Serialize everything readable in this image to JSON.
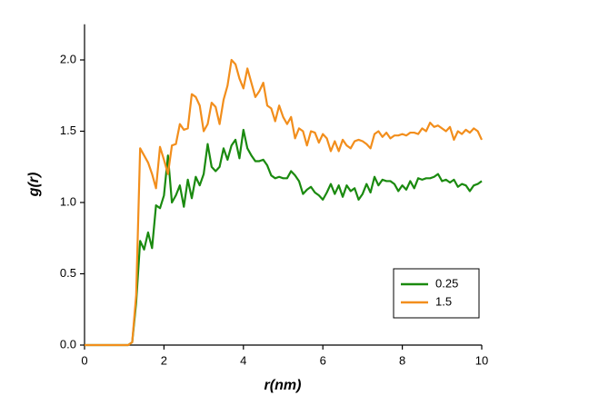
{
  "chart_data": {
    "type": "line",
    "x_label": "r(nm)",
    "y_label": "g(r)",
    "x": [
      0,
      0.1,
      0.2,
      0.3,
      0.4,
      0.5,
      0.6,
      0.7,
      0.8,
      0.9,
      1.0,
      1.1,
      1.2,
      1.3,
      1.4,
      1.5,
      1.6,
      1.7,
      1.8,
      1.9,
      2.0,
      2.1,
      2.2,
      2.3,
      2.4,
      2.5,
      2.6,
      2.7,
      2.8,
      2.9,
      3.0,
      3.1,
      3.2,
      3.3,
      3.4,
      3.5,
      3.6,
      3.7,
      3.8,
      3.9,
      4.0,
      4.1,
      4.2,
      4.3,
      4.4,
      4.5,
      4.6,
      4.7,
      4.8,
      4.9,
      5.0,
      5.1,
      5.2,
      5.3,
      5.4,
      5.5,
      5.6,
      5.7,
      5.8,
      5.9,
      6.0,
      6.1,
      6.2,
      6.3,
      6.4,
      6.5,
      6.6,
      6.7,
      6.8,
      6.9,
      7.0,
      7.1,
      7.2,
      7.3,
      7.4,
      7.5,
      7.6,
      7.7,
      7.8,
      7.9,
      8.0,
      8.1,
      8.2,
      8.3,
      8.4,
      8.5,
      8.6,
      8.7,
      8.8,
      8.9,
      9.0,
      9.1,
      9.2,
      9.3,
      9.4,
      9.5,
      9.6,
      9.7,
      9.8,
      9.9,
      10.0
    ],
    "series": [
      {
        "name": "0.25",
        "color": "#1a8a0f",
        "values": [
          0,
          0,
          0,
          0,
          0,
          0,
          0,
          0,
          0,
          0,
          0,
          0,
          0.02,
          0.3,
          0.73,
          0.67,
          0.79,
          0.68,
          0.98,
          0.96,
          1.05,
          1.33,
          1.0,
          1.05,
          1.12,
          0.97,
          1.16,
          1.03,
          1.18,
          1.12,
          1.2,
          1.41,
          1.25,
          1.22,
          1.25,
          1.38,
          1.3,
          1.4,
          1.44,
          1.31,
          1.51,
          1.38,
          1.33,
          1.29,
          1.29,
          1.3,
          1.26,
          1.19,
          1.17,
          1.18,
          1.17,
          1.17,
          1.22,
          1.19,
          1.15,
          1.06,
          1.09,
          1.11,
          1.07,
          1.05,
          1.02,
          1.07,
          1.13,
          1.06,
          1.12,
          1.04,
          1.12,
          1.08,
          1.1,
          1.02,
          1.06,
          1.13,
          1.07,
          1.18,
          1.12,
          1.16,
          1.15,
          1.15,
          1.13,
          1.08,
          1.12,
          1.09,
          1.15,
          1.1,
          1.17,
          1.16,
          1.17,
          1.17,
          1.18,
          1.2,
          1.15,
          1.16,
          1.14,
          1.16,
          1.11,
          1.13,
          1.12,
          1.08,
          1.12,
          1.13,
          1.15
        ]
      },
      {
        "name": "1.5",
        "color": "#f28e1c",
        "values": [
          0,
          0,
          0,
          0,
          0,
          0,
          0,
          0,
          0,
          0,
          0,
          0,
          0.02,
          0.35,
          1.38,
          1.33,
          1.28,
          1.2,
          1.1,
          1.39,
          1.3,
          1.2,
          1.4,
          1.41,
          1.55,
          1.51,
          1.52,
          1.76,
          1.74,
          1.68,
          1.5,
          1.55,
          1.7,
          1.67,
          1.55,
          1.72,
          1.82,
          2.0,
          1.97,
          1.87,
          1.8,
          1.94,
          1.84,
          1.74,
          1.78,
          1.84,
          1.68,
          1.66,
          1.57,
          1.68,
          1.6,
          1.55,
          1.6,
          1.45,
          1.52,
          1.5,
          1.4,
          1.5,
          1.49,
          1.42,
          1.48,
          1.45,
          1.36,
          1.43,
          1.36,
          1.44,
          1.4,
          1.38,
          1.43,
          1.44,
          1.43,
          1.41,
          1.38,
          1.48,
          1.5,
          1.46,
          1.49,
          1.45,
          1.47,
          1.47,
          1.48,
          1.47,
          1.49,
          1.49,
          1.48,
          1.52,
          1.5,
          1.56,
          1.53,
          1.54,
          1.52,
          1.5,
          1.53,
          1.44,
          1.5,
          1.48,
          1.51,
          1.49,
          1.52,
          1.5,
          1.44
        ]
      }
    ],
    "xlim": [
      0,
      10
    ],
    "xticks": [
      0,
      2,
      4,
      6,
      8,
      10
    ],
    "ylim": [
      0,
      2.25
    ],
    "yticks": [
      {
        "value": 0,
        "label": "0.0"
      },
      {
        "value": 0.5,
        "label": "0.5"
      },
      {
        "value": 1,
        "label": "1.0"
      },
      {
        "value": 1.5,
        "label": "1.5"
      },
      {
        "value": 2,
        "label": "2.0"
      }
    ],
    "legend": "lower right"
  }
}
